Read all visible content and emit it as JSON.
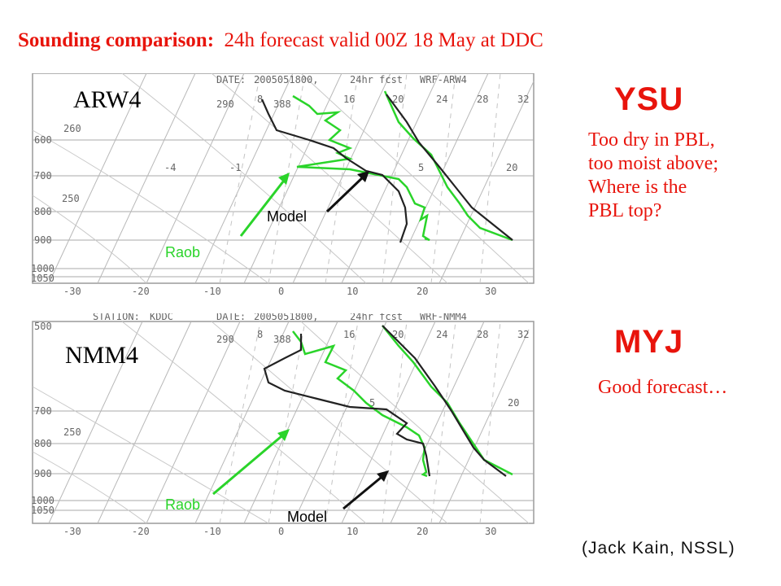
{
  "title": {
    "bold": "Sounding comparison:",
    "rest": "24h forecast valid 00Z 18 May at DDC"
  },
  "colors": {
    "accent": "#e8140c",
    "raob": "#2ad42a",
    "model": "#111111"
  },
  "panels": [
    {
      "label": "ARW4",
      "header": [
        "DATE:",
        "2005051800,",
        "24hr fcst",
        "WRF-ARW4"
      ],
      "pressure_labels": [
        "600",
        "700",
        "800",
        "900",
        "1000",
        "1050"
      ],
      "theta_labels": [
        "260",
        "250"
      ],
      "mixing_labels": [
        "290",
        "8",
        "388",
        "16",
        "20",
        "24",
        "28",
        "32",
        "-4",
        "-1",
        "5",
        "20"
      ],
      "temp_ticks": [
        "-30",
        "-20",
        "-10",
        "0",
        "10",
        "20",
        "30"
      ],
      "scheme": "YSU",
      "note": [
        "Too dry in PBL,",
        "too moist above;",
        "Where is the",
        "PBL top?"
      ],
      "raob_label": "Raob",
      "model_label": "Model"
    },
    {
      "label": "NMM4",
      "header": [
        "STATION:",
        "KDDC",
        "DATE:",
        "2005051800,",
        "24hr fcst",
        "WRF-NMM4"
      ],
      "pressure_labels": [
        "500",
        "700",
        "800",
        "900",
        "1000",
        "1050"
      ],
      "theta_labels": [
        "250"
      ],
      "mixing_labels": [
        "290",
        "8",
        "388",
        "16",
        "20",
        "24",
        "28",
        "32",
        "5",
        "20"
      ],
      "temp_ticks": [
        "-30",
        "-20",
        "-10",
        "0",
        "10",
        "20",
        "30"
      ],
      "scheme": "MYJ",
      "note": [
        "Good forecast…"
      ],
      "raob_label": "Raob",
      "model_label": "Model"
    }
  ],
  "credit": "(Jack Kain, NSSL)"
}
